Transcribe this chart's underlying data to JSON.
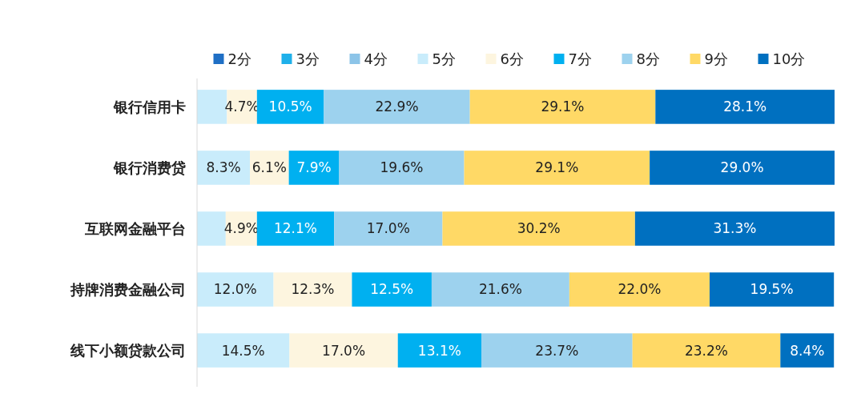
{
  "chart_data": {
    "type": "bar",
    "orientation": "horizontal",
    "stacked": true,
    "legend": "top",
    "categories": [
      "银行信用卡",
      "银行消费贷",
      "互联网金融平台",
      "持牌消费金融公司",
      "线下小额贷款公司"
    ],
    "series": [
      {
        "name": "2分",
        "color": "#1f6fc5",
        "values": [
          null,
          null,
          null,
          null,
          null
        ]
      },
      {
        "name": "3分",
        "color": "#1fb0ea",
        "values": [
          null,
          null,
          null,
          null,
          null
        ]
      },
      {
        "name": "4分",
        "color": "#8cc4e8",
        "values": [
          null,
          null,
          null,
          null,
          null
        ]
      },
      {
        "name": "5分",
        "color": "#c9ecfb",
        "values": [
          4.7,
          8.3,
          4.5,
          12.0,
          14.5
        ],
        "value_labels": [
          null,
          "8.3%",
          null,
          "12.0%",
          "14.5%"
        ]
      },
      {
        "name": "6分",
        "color": "#fdf5df",
        "values": [
          4.7,
          6.1,
          4.9,
          12.3,
          17.0
        ],
        "value_labels": [
          "4.7%",
          "6.1%",
          "4.9%",
          "12.3%",
          "17.0%"
        ]
      },
      {
        "name": "7分",
        "color": "#00b0f0",
        "values": [
          10.5,
          7.9,
          12.1,
          12.5,
          13.1
        ],
        "value_labels": [
          "10.5%",
          "7.9%",
          "12.1%",
          "12.5%",
          "13.1%"
        ]
      },
      {
        "name": "8分",
        "color": "#9dd2ee",
        "values": [
          22.9,
          19.6,
          17.0,
          21.6,
          23.7
        ],
        "value_labels": [
          "22.9%",
          "19.6%",
          "17.0%",
          "21.6%",
          "23.7%"
        ]
      },
      {
        "name": "9分",
        "color": "#ffd966",
        "values": [
          29.1,
          29.1,
          30.2,
          22.0,
          23.2
        ],
        "value_labels": [
          "29.1%",
          "29.1%",
          "30.2%",
          "22.0%",
          "23.2%"
        ]
      },
      {
        "name": "10分",
        "color": "#0070c0",
        "values": [
          28.1,
          29.0,
          31.3,
          19.5,
          8.4
        ],
        "value_labels": [
          "28.1%",
          "29.0%",
          "31.3%",
          "19.5%",
          "8.4%"
        ]
      }
    ]
  }
}
